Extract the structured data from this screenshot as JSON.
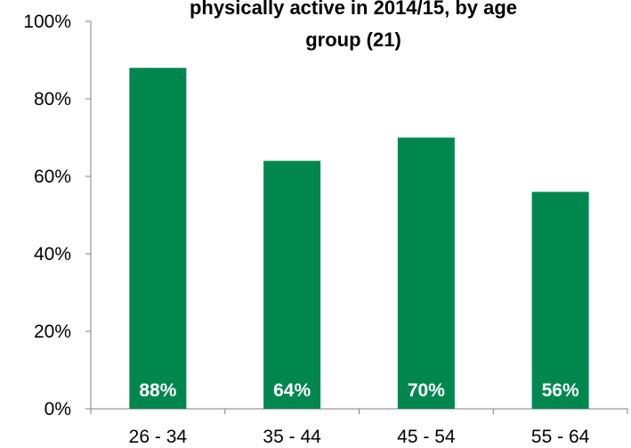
{
  "chart_data": {
    "type": "bar",
    "title_lines": [
      "physically active in 2014/15, by age",
      "group (21)"
    ],
    "categories": [
      "26 - 34",
      "35 - 44",
      "45 - 54",
      "55 - 64"
    ],
    "values": [
      88,
      64,
      70,
      56
    ],
    "data_labels": [
      "88%",
      "64%",
      "70%",
      "56%"
    ],
    "y_ticks": [
      0,
      20,
      40,
      60,
      80,
      100
    ],
    "y_tick_labels": [
      "0%",
      "20%",
      "40%",
      "60%",
      "80%",
      "100%"
    ],
    "ylim": [
      0,
      100
    ],
    "bar_color": "#00874f",
    "grid": false,
    "legend": "none"
  }
}
